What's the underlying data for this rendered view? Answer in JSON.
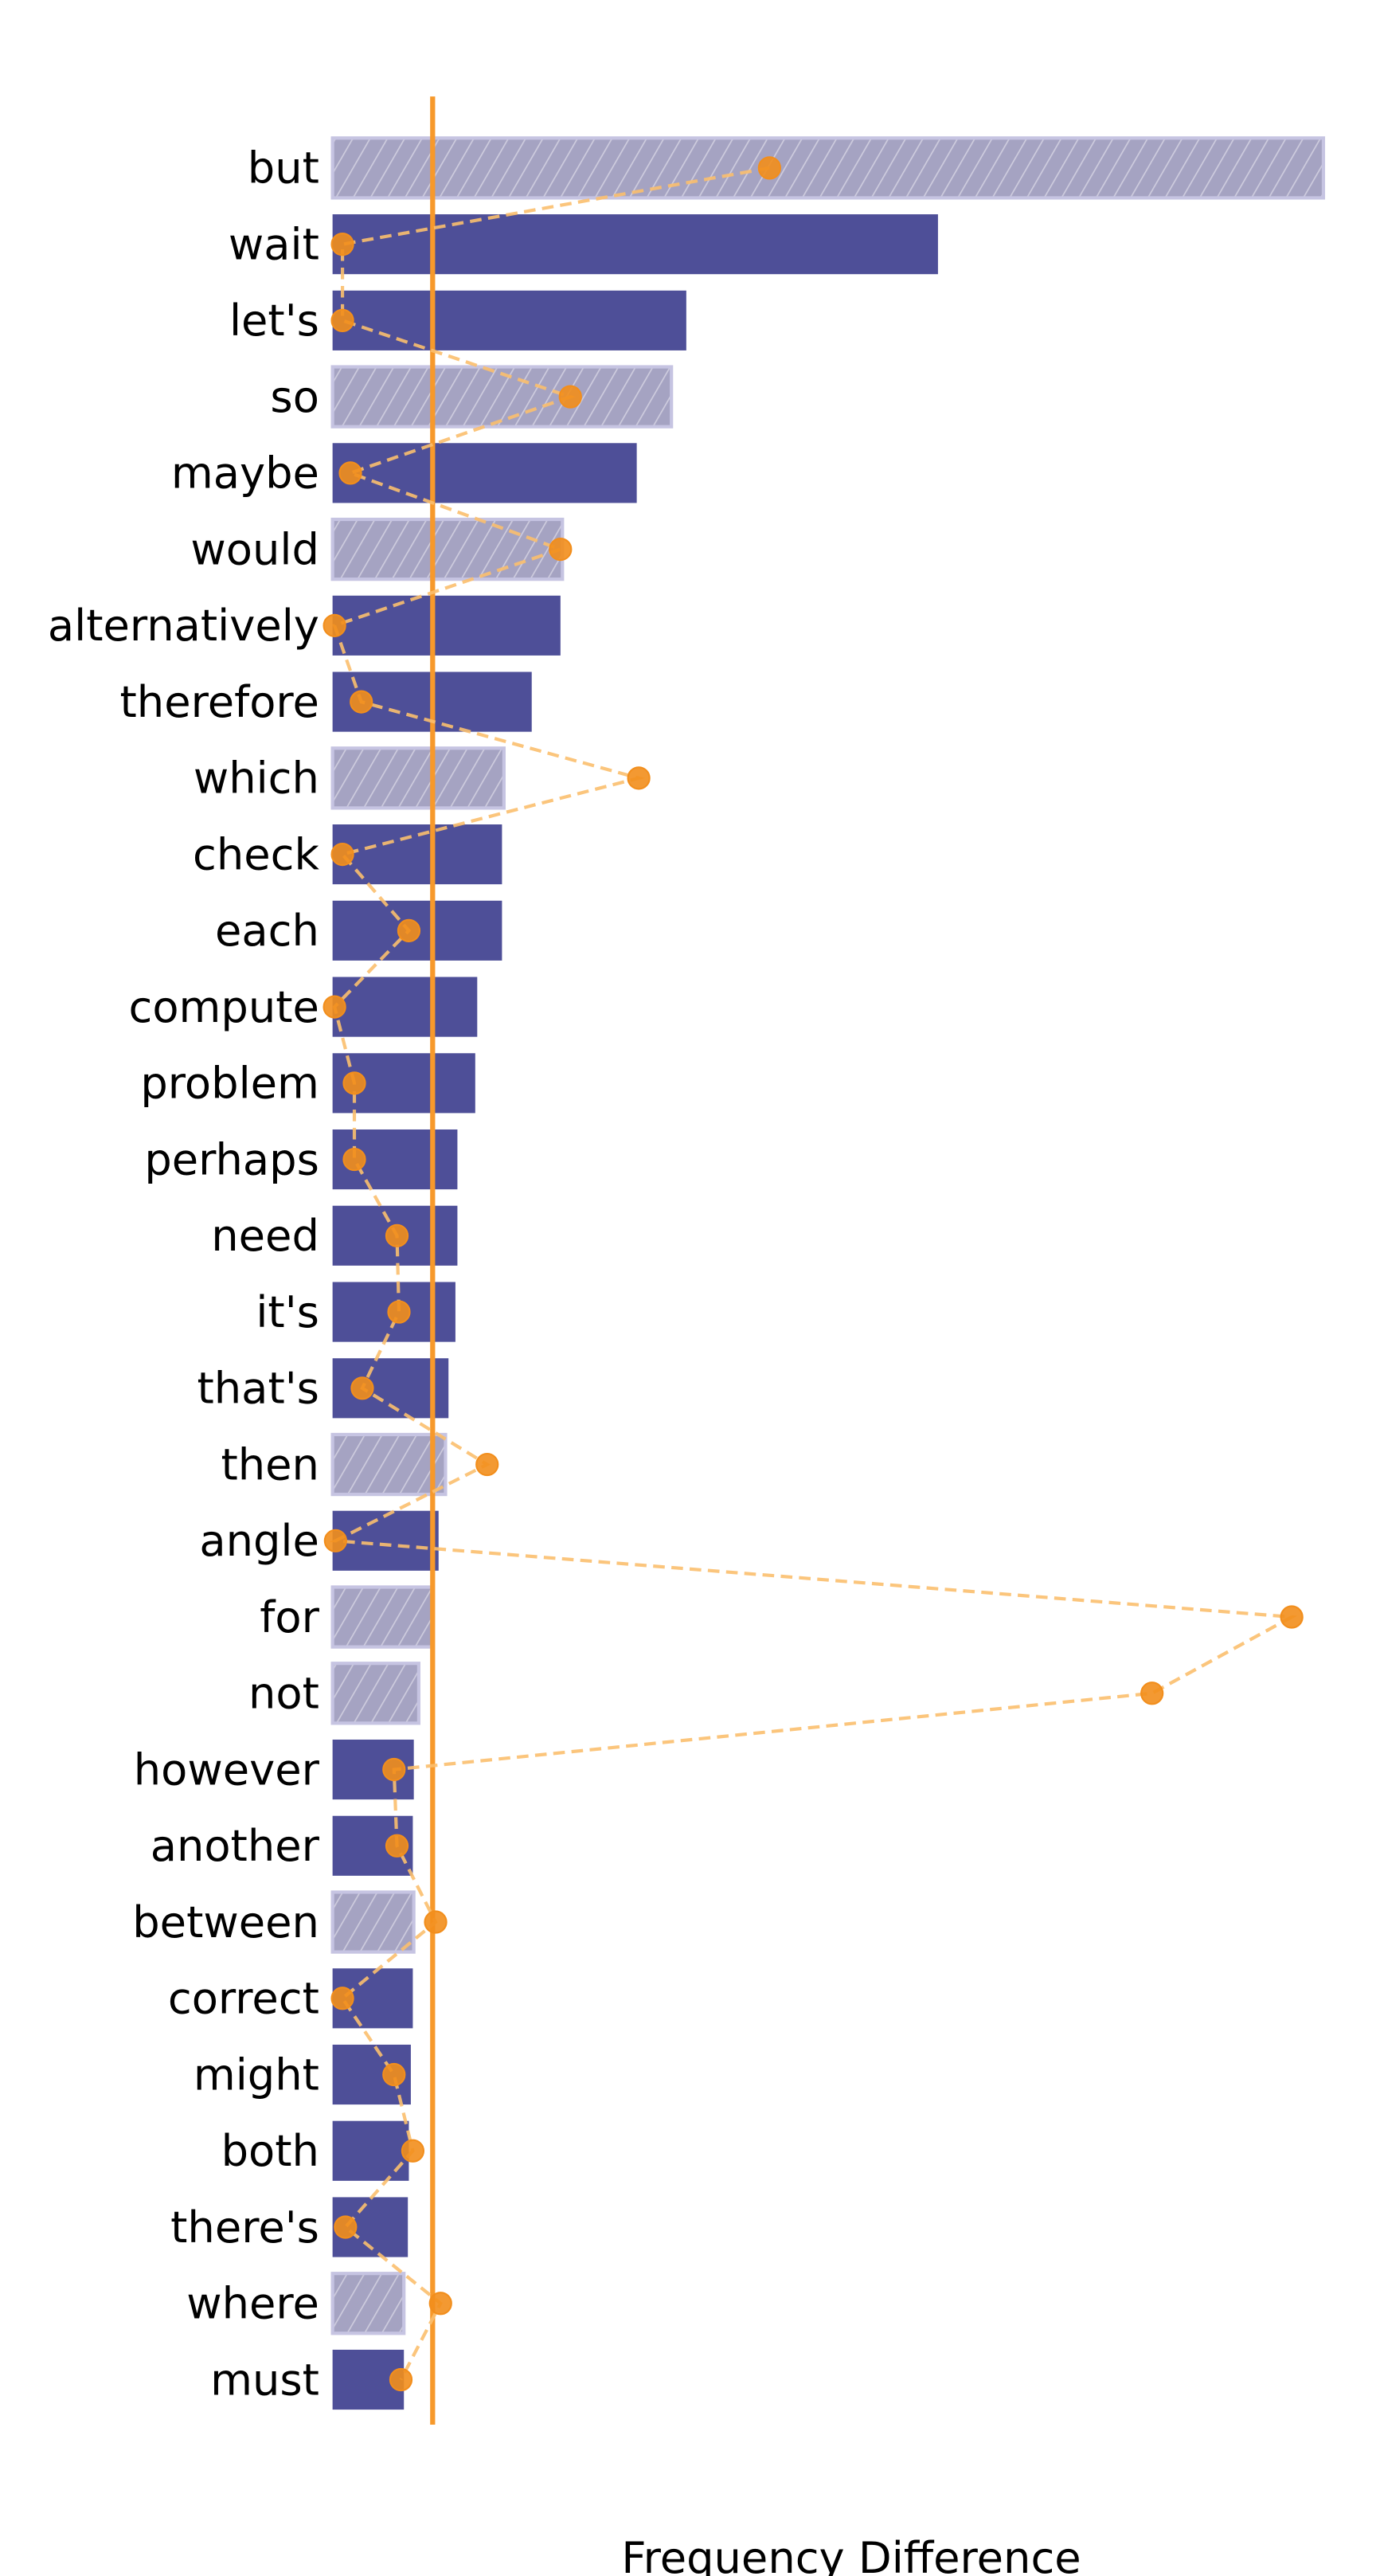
{
  "chart_data": {
    "type": "bar",
    "orientation": "horizontal",
    "xlabel": "Frequency Difference",
    "ylabel": "",
    "title": "",
    "x_ticks_shown": false,
    "value_units": "relative (longest bar = 100); no axis ticks printed",
    "xlim": [
      0,
      100
    ],
    "categories": [
      "but",
      "wait",
      "let's",
      "so",
      "maybe",
      "would",
      "alternatively",
      "therefore",
      "which",
      "check",
      "each",
      "compute",
      "problem",
      "perhaps",
      "need",
      "it's",
      "that's",
      "then",
      "angle",
      "for",
      "not",
      "however",
      "another",
      "between",
      "correct",
      "might",
      "both",
      "there's",
      "where",
      "must"
    ],
    "values": [
      100,
      61.1,
      35.7,
      34.2,
      30.7,
      23.2,
      23.0,
      20.1,
      17.3,
      17.1,
      17.1,
      14.6,
      14.4,
      12.6,
      12.6,
      12.4,
      11.7,
      11.4,
      10.7,
      10.1,
      8.7,
      8.2,
      8.1,
      8.2,
      8.1,
      7.9,
      7.7,
      7.6,
      7.2,
      7.2
    ],
    "hatched": [
      true,
      false,
      false,
      true,
      false,
      true,
      false,
      false,
      true,
      false,
      false,
      false,
      false,
      false,
      false,
      false,
      false,
      true,
      false,
      true,
      true,
      false,
      false,
      true,
      false,
      false,
      false,
      false,
      true,
      false
    ],
    "line_series": {
      "style": "dashed line with circle markers",
      "values": [
        44.1,
        1.0,
        1.0,
        24.0,
        1.8,
        23.0,
        0.2,
        2.9,
        30.9,
        1.0,
        7.7,
        0.2,
        2.2,
        2.2,
        6.5,
        6.7,
        3.0,
        15.6,
        0.3,
        96.8,
        82.7,
        6.2,
        6.5,
        10.4,
        1.0,
        6.2,
        8.1,
        1.3,
        10.9,
        6.9
      ]
    },
    "reference_line": 10.1,
    "grid": false,
    "colors": {
      "bar": "#4e4f98",
      "hatched_bar": "#a5a3c2",
      "hatched_edge": "#c6c4e2",
      "reference_line": "#f7992b",
      "marker": "#f28e1c",
      "dashed_line": "#fbbf6e"
    }
  }
}
